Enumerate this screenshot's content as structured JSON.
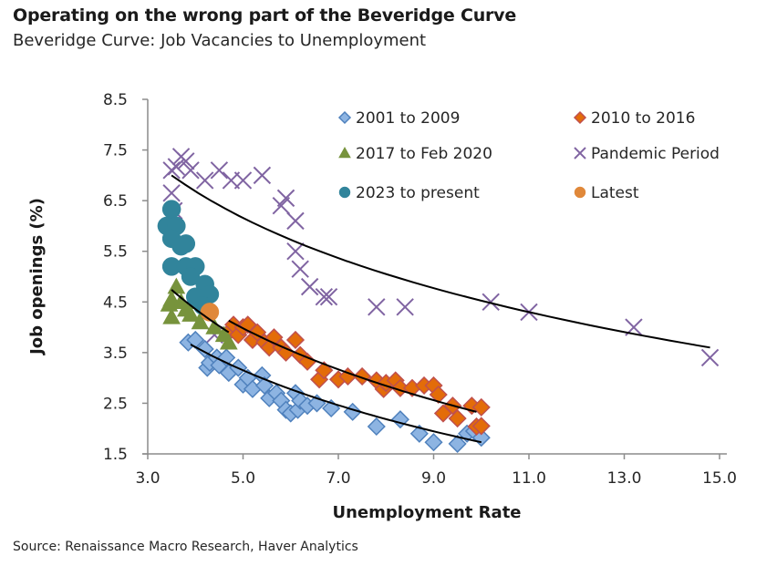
{
  "header": {
    "title": "Operating on the wrong part of the Beveridge Curve",
    "subtitle": "Beveridge Curve: Job Vacancies to Unemployment"
  },
  "footer": {
    "source": "Source: Renaissance Macro Research, Haver Analytics"
  },
  "chart_data": {
    "type": "scatter",
    "title": "Beveridge Curve: Job Vacancies to Unemployment",
    "xlabel": "Unemployment Rate",
    "ylabel": "Job openings (%)",
    "xlim": [
      3.0,
      15.0
    ],
    "ylim": [
      1.5,
      8.5
    ],
    "xticks": [
      "3.0",
      "5.0",
      "7.0",
      "9.0",
      "11.0",
      "13.0",
      "15.0"
    ],
    "yticks": [
      "1.5",
      "2.5",
      "3.5",
      "4.5",
      "5.5",
      "6.5",
      "7.5",
      "8.5"
    ],
    "grid": false,
    "legend_position": "top-right",
    "series": [
      {
        "name": "2001 to 2009",
        "marker": "diamond",
        "fill": "#8DB4E2",
        "stroke": "#4F81BD",
        "points": [
          [
            3.85,
            3.7
          ],
          [
            4.0,
            3.75
          ],
          [
            4.2,
            3.57
          ],
          [
            4.25,
            3.2
          ],
          [
            4.3,
            3.3
          ],
          [
            4.45,
            3.4
          ],
          [
            4.5,
            3.25
          ],
          [
            4.65,
            3.4
          ],
          [
            4.7,
            3.1
          ],
          [
            4.9,
            3.2
          ],
          [
            5.0,
            2.87
          ],
          [
            5.1,
            3.0
          ],
          [
            5.2,
            2.78
          ],
          [
            5.4,
            3.05
          ],
          [
            5.45,
            2.85
          ],
          [
            5.55,
            2.6
          ],
          [
            5.7,
            2.7
          ],
          [
            5.8,
            2.55
          ],
          [
            5.9,
            2.37
          ],
          [
            6.0,
            2.3
          ],
          [
            6.1,
            2.7
          ],
          [
            6.15,
            2.37
          ],
          [
            6.2,
            2.55
          ],
          [
            6.35,
            2.45
          ],
          [
            6.55,
            2.5
          ],
          [
            6.85,
            2.4
          ],
          [
            7.3,
            2.33
          ],
          [
            7.8,
            2.04
          ],
          [
            8.3,
            2.18
          ],
          [
            8.7,
            1.9
          ],
          [
            9.0,
            1.73
          ],
          [
            9.5,
            1.7
          ],
          [
            9.7,
            1.9
          ],
          [
            9.85,
            1.95
          ],
          [
            10.0,
            1.82
          ]
        ]
      },
      {
        "name": "2010 to 2016",
        "marker": "diamond",
        "fill": "#E36C09",
        "stroke": "#C0504D",
        "points": [
          [
            4.7,
            3.9
          ],
          [
            4.8,
            4.05
          ],
          [
            4.9,
            3.85
          ],
          [
            5.0,
            4.0
          ],
          [
            5.1,
            4.05
          ],
          [
            5.2,
            3.75
          ],
          [
            5.3,
            3.9
          ],
          [
            5.45,
            3.7
          ],
          [
            5.55,
            3.6
          ],
          [
            5.65,
            3.8
          ],
          [
            5.8,
            3.6
          ],
          [
            5.9,
            3.5
          ],
          [
            6.1,
            3.75
          ],
          [
            6.2,
            3.45
          ],
          [
            6.35,
            3.32
          ],
          [
            6.6,
            2.97
          ],
          [
            6.7,
            3.15
          ],
          [
            7.0,
            2.97
          ],
          [
            7.2,
            3.03
          ],
          [
            7.5,
            3.03
          ],
          [
            7.8,
            2.95
          ],
          [
            7.95,
            2.78
          ],
          [
            8.0,
            2.9
          ],
          [
            8.2,
            2.95
          ],
          [
            8.3,
            2.8
          ],
          [
            8.55,
            2.8
          ],
          [
            8.8,
            2.85
          ],
          [
            9.0,
            2.85
          ],
          [
            9.1,
            2.67
          ],
          [
            9.2,
            2.3
          ],
          [
            9.4,
            2.45
          ],
          [
            9.5,
            2.2
          ],
          [
            9.8,
            2.45
          ],
          [
            9.9,
            2.04
          ],
          [
            10.0,
            2.42
          ],
          [
            10.0,
            2.05
          ]
        ]
      },
      {
        "name": "2017 to Feb 2020",
        "marker": "triangle",
        "fill": "#77933C",
        "stroke": "#77933C",
        "points": [
          [
            3.5,
            4.55
          ],
          [
            3.6,
            4.8
          ],
          [
            3.45,
            4.45
          ],
          [
            3.5,
            4.2
          ],
          [
            3.7,
            4.5
          ],
          [
            3.8,
            4.35
          ],
          [
            3.9,
            4.25
          ],
          [
            4.0,
            4.5
          ],
          [
            4.1,
            4.1
          ],
          [
            4.2,
            4.3
          ],
          [
            4.4,
            4.0
          ],
          [
            4.6,
            3.85
          ],
          [
            4.7,
            3.7
          ]
        ]
      },
      {
        "name": "Pandemic Period",
        "marker": "x",
        "fill": "none",
        "stroke": "#8064A2",
        "points": [
          [
            3.5,
            7.1
          ],
          [
            3.6,
            7.17
          ],
          [
            3.7,
            7.37
          ],
          [
            3.8,
            7.28
          ],
          [
            3.9,
            7.1
          ],
          [
            4.2,
            6.9
          ],
          [
            4.5,
            7.1
          ],
          [
            4.75,
            6.9
          ],
          [
            5.0,
            6.9
          ],
          [
            5.4,
            7.0
          ],
          [
            5.8,
            6.4
          ],
          [
            5.9,
            6.55
          ],
          [
            6.1,
            6.1
          ],
          [
            6.1,
            5.5
          ],
          [
            6.2,
            5.15
          ],
          [
            6.4,
            4.8
          ],
          [
            6.7,
            4.6
          ],
          [
            6.8,
            4.6
          ],
          [
            7.8,
            4.4
          ],
          [
            8.4,
            4.4
          ],
          [
            10.2,
            4.5
          ],
          [
            11.0,
            4.3
          ],
          [
            13.2,
            4.0
          ],
          [
            14.8,
            3.4
          ],
          [
            3.5,
            6.65
          ],
          [
            3.55,
            6.3
          ],
          [
            4.4,
            3.85
          ]
        ]
      },
      {
        "name": "2023 to present",
        "marker": "circle",
        "fill": "#31849B",
        "stroke": "#31849B",
        "points": [
          [
            3.5,
            6.33
          ],
          [
            3.4,
            6.0
          ],
          [
            3.6,
            6.0
          ],
          [
            3.5,
            5.75
          ],
          [
            3.8,
            5.65
          ],
          [
            3.7,
            5.6
          ],
          [
            3.5,
            5.2
          ],
          [
            3.8,
            5.2
          ],
          [
            4.0,
            5.2
          ],
          [
            3.9,
            5.0
          ],
          [
            4.2,
            4.85
          ],
          [
            4.0,
            4.6
          ],
          [
            4.3,
            4.65
          ],
          [
            4.15,
            4.43
          ]
        ]
      },
      {
        "name": "Latest",
        "marker": "circle",
        "fill": "#E0883A",
        "stroke": "#E0883A",
        "points": [
          [
            4.3,
            4.3
          ]
        ]
      }
    ],
    "trendlines": [
      {
        "name": "2001 to 2009 fit",
        "from": [
          3.9,
          3.66
        ],
        "to": [
          10.0,
          1.73
        ],
        "shape": "log"
      },
      {
        "name": "2010 to 2016 fit",
        "from": [
          4.7,
          4.13
        ],
        "to": [
          9.9,
          2.33
        ],
        "shape": "log"
      },
      {
        "name": "2017 to Feb 2020 fit",
        "from": [
          3.5,
          4.74
        ],
        "to": [
          4.7,
          3.9
        ],
        "shape": "log"
      },
      {
        "name": "Pandemic fit",
        "from": [
          3.5,
          7.0
        ],
        "to": [
          14.8,
          3.6
        ],
        "shape": "log"
      }
    ]
  }
}
